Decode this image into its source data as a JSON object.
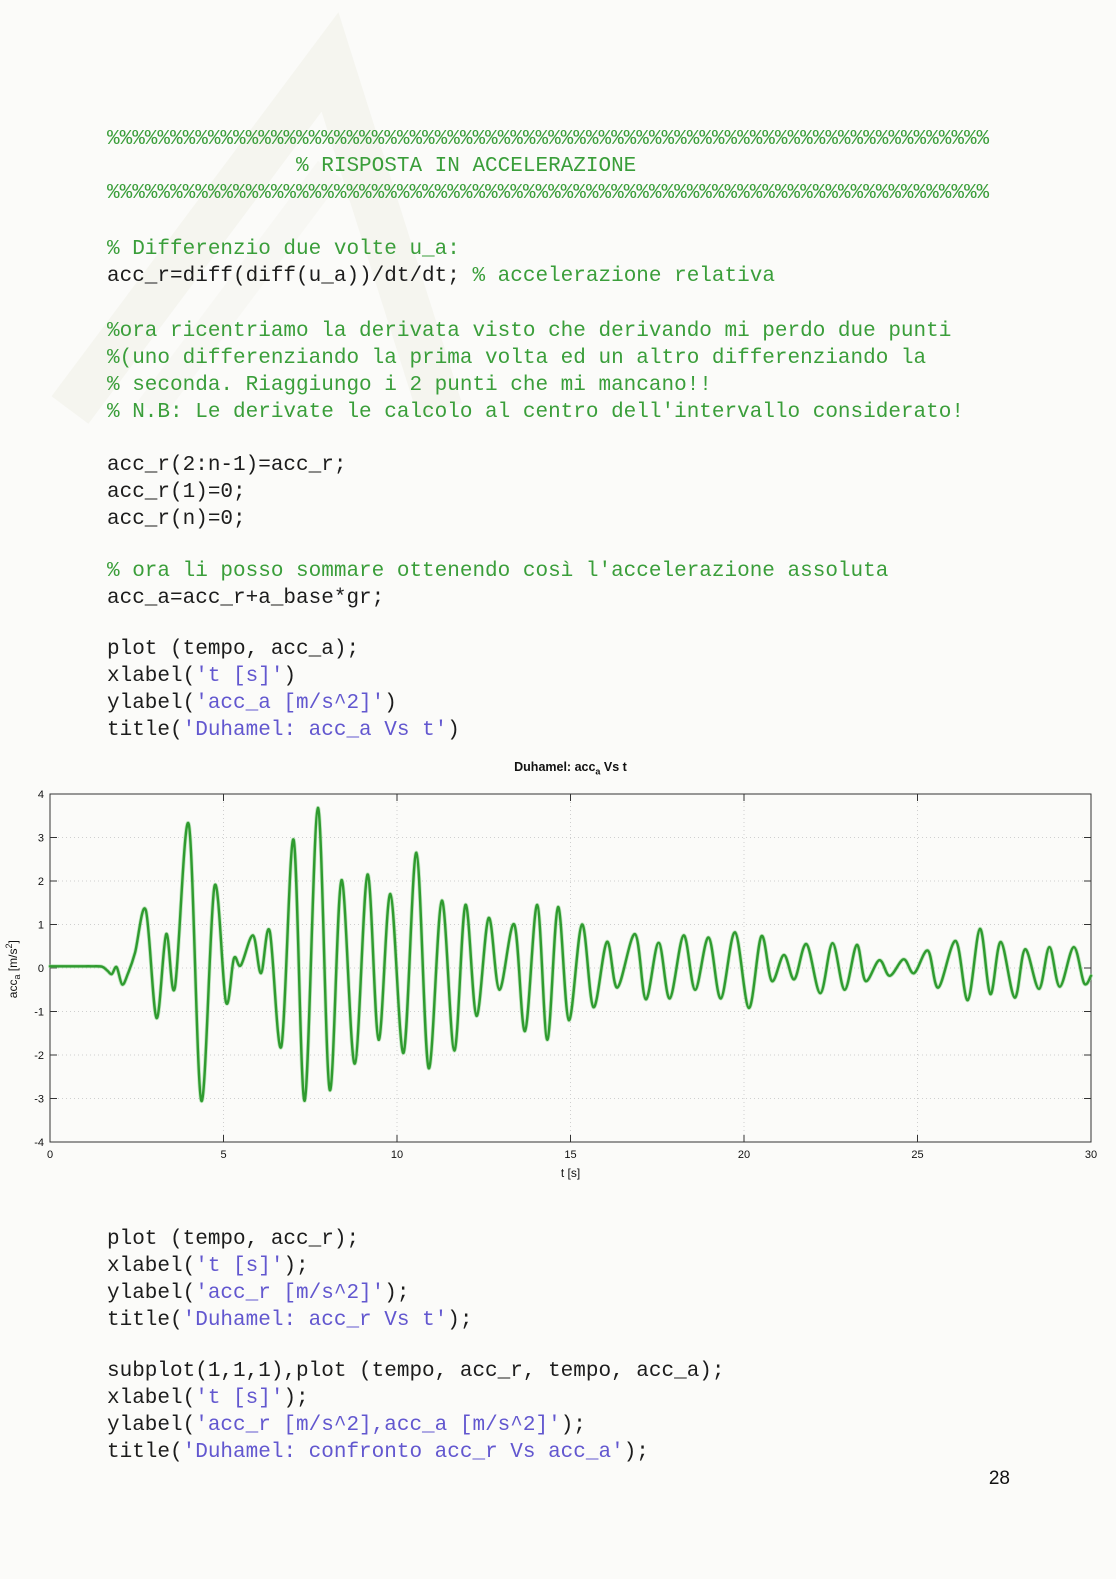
{
  "page": {
    "number": "28"
  },
  "code_top_blocks": [
    {
      "mt": 0,
      "lines": [
        [
          [
            "g",
            "%%%%%%%%%%%%%%%%%%%%%%%%%%%%%%%%%%%%%%%%%%%%%%%%%%%%%%%%%%%%%%%%%%%%%%"
          ]
        ],
        [
          [
            "g",
            "               % RISPOSTA IN ACCELERAZIONE"
          ]
        ],
        [
          [
            "g",
            "%%%%%%%%%%%%%%%%%%%%%%%%%%%%%%%%%%%%%%%%%%%%%%%%%%%%%%%%%%%%%%%%%%%%%%"
          ]
        ]
      ]
    },
    {
      "mt": 29,
      "lines": [
        [
          [
            "g",
            "% Differenzio due volte u_a:"
          ]
        ],
        [
          [
            "k",
            "acc_r=diff(diff(u_a))/dt/dt; "
          ],
          [
            "g",
            "% accelerazione relativa"
          ]
        ]
      ]
    },
    {
      "mt": 28,
      "lines": [
        [
          [
            "g",
            "%ora ricentriamo la derivata visto che derivando mi perdo due punti"
          ]
        ],
        [
          [
            "g",
            "%(uno differenziando la prima volta ed un altro differenziando la"
          ]
        ],
        [
          [
            "g",
            "% seconda. Riaggiungo i 2 punti che mi mancano!!"
          ]
        ],
        [
          [
            "g",
            "% N.B: Le derivate le calcolo al centro dell'intervallo considerato!"
          ]
        ]
      ]
    },
    {
      "mt": 26,
      "lines": [
        [
          [
            "k",
            "acc_r(2:n-1)=acc_r;"
          ]
        ],
        [
          [
            "k",
            "acc_r(1)=0;"
          ]
        ],
        [
          [
            "k",
            "acc_r(n)=0;"
          ]
        ]
      ]
    },
    {
      "mt": 25,
      "lines": [
        [
          [
            "g",
            "% ora li posso sommare ottenendo così l'accelerazione assoluta"
          ]
        ],
        [
          [
            "k",
            "acc_a=acc_r+a_base*gr;"
          ]
        ]
      ]
    },
    {
      "mt": 24,
      "lines": [
        [
          [
            "k",
            "plot (tempo, acc_a);"
          ]
        ],
        [
          [
            "k",
            "xlabel("
          ],
          [
            "p",
            "'t [s]'"
          ],
          [
            "k",
            ")"
          ]
        ],
        [
          [
            "k",
            "ylabel("
          ],
          [
            "p",
            "'acc_a [m/s^2]'"
          ],
          [
            "k",
            ")"
          ]
        ],
        [
          [
            "k",
            "title("
          ],
          [
            "p",
            "'Duhamel: acc_a Vs t'"
          ],
          [
            "k",
            ")"
          ]
        ]
      ]
    }
  ],
  "code_bottom_blocks": [
    {
      "mt": 0,
      "lines": [
        [
          [
            "k",
            "plot (tempo, acc_r);"
          ]
        ],
        [
          [
            "k",
            "xlabel("
          ],
          [
            "p",
            "'t [s]'"
          ],
          [
            "k",
            ");"
          ]
        ],
        [
          [
            "k",
            "ylabel("
          ],
          [
            "p",
            "'acc_r [m/s^2]'"
          ],
          [
            "k",
            ");"
          ]
        ],
        [
          [
            "k",
            "title("
          ],
          [
            "p",
            "'Duhamel: acc_r Vs t'"
          ],
          [
            "k",
            ");"
          ]
        ]
      ]
    },
    {
      "mt": 24,
      "lines": [
        [
          [
            "k",
            "subplot(1,1,1),plot (tempo, acc_r, tempo, acc_a);"
          ]
        ],
        [
          [
            "k",
            "xlabel("
          ],
          [
            "p",
            "'t [s]'"
          ],
          [
            "k",
            ");"
          ]
        ],
        [
          [
            "k",
            "ylabel("
          ],
          [
            "p",
            "'acc_r [m/s^2],acc_a [m/s^2]'"
          ],
          [
            "k",
            ");"
          ]
        ],
        [
          [
            "k",
            "title("
          ],
          [
            "p",
            "'Duhamel: confronto acc_r Vs acc_a'"
          ],
          [
            "k",
            ");"
          ]
        ]
      ]
    }
  ],
  "chart_data": {
    "type": "line",
    "title": "Duhamel: acc_a Vs t",
    "title_pre": "Duhamel: acc",
    "title_sub": "a",
    "title_post": " Vs t",
    "xlabel": "t [s]",
    "ylabel": "acc_a [m/s^2]",
    "ylabel_pre": "acc",
    "ylabel_sub": "a",
    "ylabel_mid": " [m/s",
    "ylabel_sup": "2",
    "ylabel_post": "]",
    "xlim": [
      0,
      30
    ],
    "ylim": [
      -4,
      4
    ],
    "x_ticks": [
      0,
      5,
      10,
      15,
      20,
      25,
      30
    ],
    "y_ticks": [
      -4,
      -3,
      -2,
      -1,
      0,
      1,
      2,
      3,
      4
    ],
    "grid": true,
    "legend": "none",
    "line_color": "#2f9b2f",
    "series": [
      {
        "name": "acc_a",
        "points": [
          [
            0,
            0.04
          ],
          [
            0.3,
            0.04
          ],
          [
            0.6,
            0.04
          ],
          [
            0.9,
            0.04
          ],
          [
            1.2,
            0.04
          ],
          [
            1.5,
            0.03
          ],
          [
            1.65,
            -0.06
          ],
          [
            1.78,
            -0.14
          ],
          [
            1.92,
            0.02
          ],
          [
            2.08,
            -0.38
          ],
          [
            2.25,
            -0.12
          ],
          [
            2.45,
            0.35
          ],
          [
            2.76,
            1.33
          ],
          [
            3.07,
            -1.15
          ],
          [
            3.35,
            0.78
          ],
          [
            3.6,
            -0.45
          ],
          [
            4.0,
            3.3
          ],
          [
            4.36,
            -3.05
          ],
          [
            4.74,
            1.88
          ],
          [
            5.07,
            -0.78
          ],
          [
            5.3,
            0.22
          ],
          [
            5.5,
            0.06
          ],
          [
            5.85,
            0.75
          ],
          [
            6.08,
            -0.12
          ],
          [
            6.33,
            0.85
          ],
          [
            6.67,
            -1.8
          ],
          [
            7.02,
            2.95
          ],
          [
            7.34,
            -3.05
          ],
          [
            7.72,
            3.68
          ],
          [
            8.06,
            -2.8
          ],
          [
            8.4,
            2.02
          ],
          [
            8.78,
            -2.2
          ],
          [
            9.15,
            2.15
          ],
          [
            9.47,
            -1.65
          ],
          [
            9.81,
            1.7
          ],
          [
            10.19,
            -1.95
          ],
          [
            10.56,
            2.65
          ],
          [
            10.91,
            -2.3
          ],
          [
            11.29,
            1.55
          ],
          [
            11.65,
            -1.9
          ],
          [
            11.97,
            1.45
          ],
          [
            12.29,
            -1.1
          ],
          [
            12.64,
            1.15
          ],
          [
            12.95,
            -0.5
          ],
          [
            13.38,
            1.0
          ],
          [
            13.69,
            -1.45
          ],
          [
            14.04,
            1.45
          ],
          [
            14.33,
            -1.65
          ],
          [
            14.64,
            1.4
          ],
          [
            14.95,
            -1.2
          ],
          [
            15.33,
            1.0
          ],
          [
            15.66,
            -0.9
          ],
          [
            16.05,
            0.6
          ],
          [
            16.35,
            -0.45
          ],
          [
            16.86,
            0.78
          ],
          [
            17.17,
            -0.72
          ],
          [
            17.54,
            0.58
          ],
          [
            17.86,
            -0.7
          ],
          [
            18.26,
            0.75
          ],
          [
            18.59,
            -0.5
          ],
          [
            18.98,
            0.7
          ],
          [
            19.33,
            -0.7
          ],
          [
            19.74,
            0.82
          ],
          [
            20.14,
            -0.92
          ],
          [
            20.5,
            0.73
          ],
          [
            20.8,
            -0.3
          ],
          [
            21.15,
            0.3
          ],
          [
            21.45,
            -0.26
          ],
          [
            21.8,
            0.55
          ],
          [
            22.2,
            -0.58
          ],
          [
            22.55,
            0.57
          ],
          [
            22.9,
            -0.5
          ],
          [
            23.25,
            0.53
          ],
          [
            23.5,
            -0.3
          ],
          [
            23.9,
            0.18
          ],
          [
            24.2,
            -0.18
          ],
          [
            24.6,
            0.2
          ],
          [
            24.9,
            -0.12
          ],
          [
            25.3,
            0.4
          ],
          [
            25.6,
            -0.45
          ],
          [
            26.1,
            0.62
          ],
          [
            26.45,
            -0.74
          ],
          [
            26.8,
            0.9
          ],
          [
            27.1,
            -0.6
          ],
          [
            27.4,
            0.6
          ],
          [
            27.8,
            -0.68
          ],
          [
            28.1,
            0.43
          ],
          [
            28.5,
            -0.48
          ],
          [
            28.8,
            0.48
          ],
          [
            29.1,
            -0.43
          ],
          [
            29.5,
            0.48
          ],
          [
            29.8,
            -0.35
          ],
          [
            30,
            -0.18
          ]
        ]
      }
    ]
  }
}
